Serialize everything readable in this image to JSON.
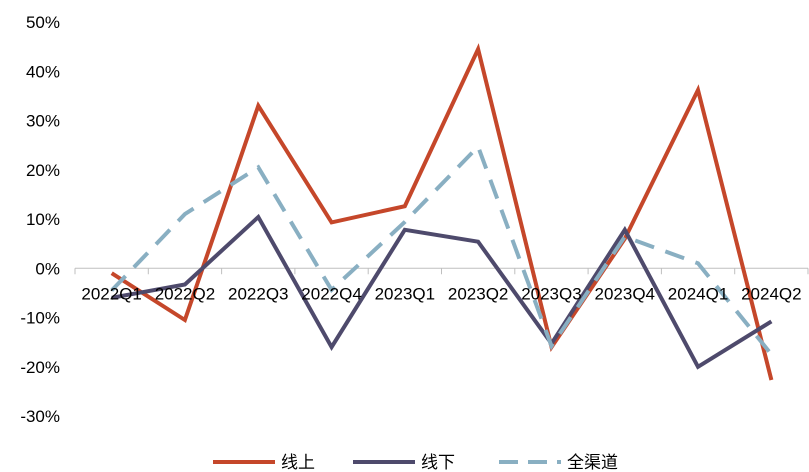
{
  "chart_data": {
    "type": "line",
    "categories": [
      "2022Q1",
      "2022Q2",
      "2022Q3",
      "2022Q4",
      "2023Q1",
      "2023Q2",
      "2023Q3",
      "2023Q4",
      "2024Q1",
      "2024Q2"
    ],
    "series": [
      {
        "name": "线上",
        "values": [
          -1,
          -10.5,
          33,
          9.3,
          12.6,
          44.5,
          -16,
          6,
          36.2,
          -22.7
        ],
        "color": "#C5472A",
        "dash": "solid"
      },
      {
        "name": "线下",
        "values": [
          -6,
          -3.3,
          10.4,
          -16,
          7.8,
          5.4,
          -15.3,
          7.8,
          -20,
          -10.8
        ],
        "color": "#4E4A6C",
        "dash": "solid"
      },
      {
        "name": "全渠道",
        "values": [
          -4.5,
          11,
          20.5,
          -4.4,
          9.4,
          24.7,
          -15.8,
          6.4,
          1,
          -17.5
        ],
        "color": "#89AFC2",
        "dash": "dashed"
      }
    ],
    "y_ticks": [
      "50%",
      "40%",
      "30%",
      "20%",
      "10%",
      "0%",
      "-10%",
      "-20%",
      "-30%"
    ],
    "ylim": [
      -30,
      50
    ],
    "title": "",
    "xlabel": "",
    "ylabel": "",
    "grid": false,
    "legend_position": "bottom"
  }
}
